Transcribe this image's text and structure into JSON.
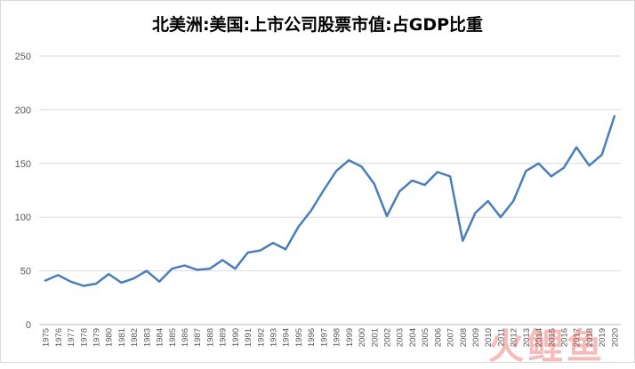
{
  "chart_data": {
    "type": "line",
    "title": "北美洲:美国:上市公司股票市值:占GDP比重",
    "xlabel": "",
    "ylabel": "",
    "ylim": [
      0,
      250
    ],
    "yticks": [
      0,
      50,
      100,
      150,
      200,
      250
    ],
    "grid": true,
    "legend": "none",
    "x": [
      "1975",
      "1976",
      "1977",
      "1978",
      "1979",
      "1980",
      "1981",
      "1982",
      "1983",
      "1984",
      "1985",
      "1986",
      "1987",
      "1988",
      "1989",
      "1990",
      "1991",
      "1992",
      "1993",
      "1994",
      "1995",
      "1996",
      "1997",
      "1998",
      "1999",
      "2000",
      "2001",
      "2002",
      "2003",
      "2004",
      "2005",
      "2006",
      "2007",
      "2008",
      "2009",
      "2010",
      "2011",
      "2012",
      "2013",
      "2014",
      "2015",
      "2016",
      "2017",
      "2018",
      "2019",
      "2020"
    ],
    "series": [
      {
        "color": "#4a7ebb",
        "values": [
          41,
          46,
          40,
          36,
          38,
          47,
          39,
          43,
          50,
          40,
          52,
          55,
          51,
          52,
          60,
          52,
          67,
          69,
          76,
          70,
          91,
          106,
          125,
          143,
          153,
          147,
          131,
          101,
          124,
          134,
          130,
          142,
          138,
          78,
          104,
          115,
          100,
          115,
          143,
          150,
          138,
          146,
          165,
          148,
          158,
          194
        ]
      }
    ]
  },
  "watermark": "火鲤鱼"
}
